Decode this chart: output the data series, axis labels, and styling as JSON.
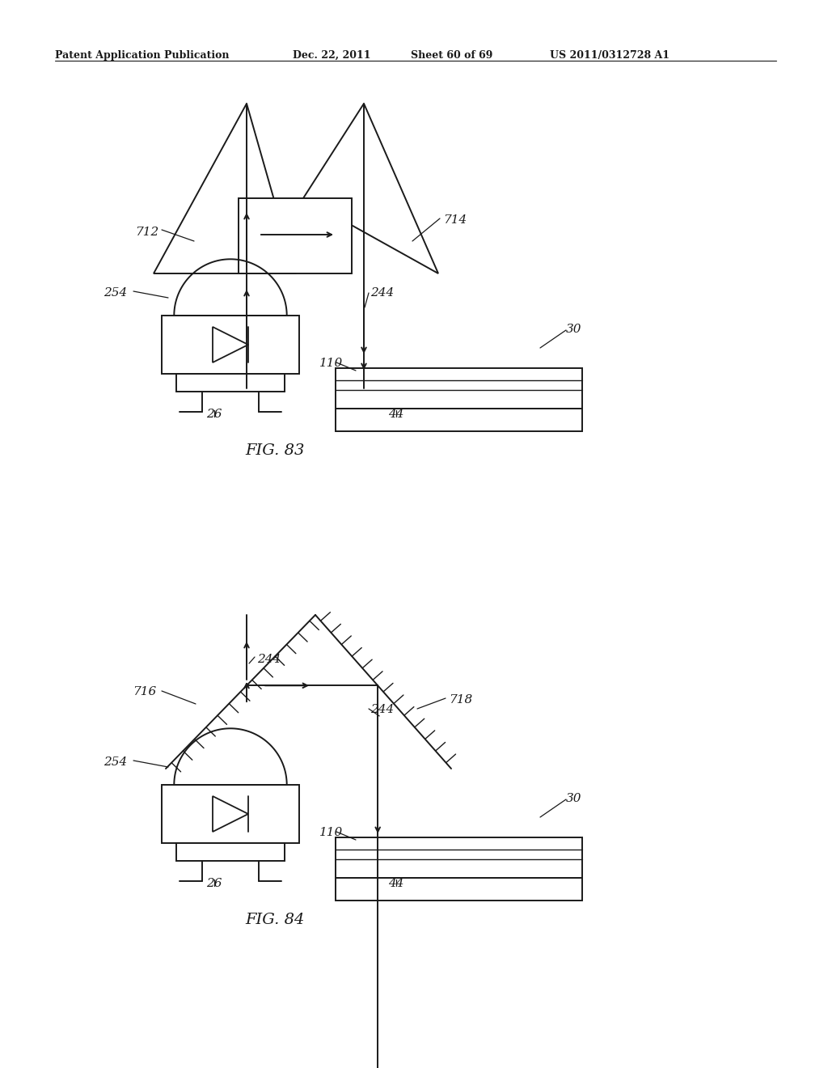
{
  "bg_color": "#ffffff",
  "line_color": "#1a1a1a",
  "header_text": "Patent Application Publication",
  "header_date": "Dec. 22, 2011",
  "header_sheet": "Sheet 60 of 69",
  "header_patent": "US 2011/0312728 A1",
  "fig83_label": "FIG. 83",
  "fig84_label": "FIG. 84",
  "lw": 1.4
}
